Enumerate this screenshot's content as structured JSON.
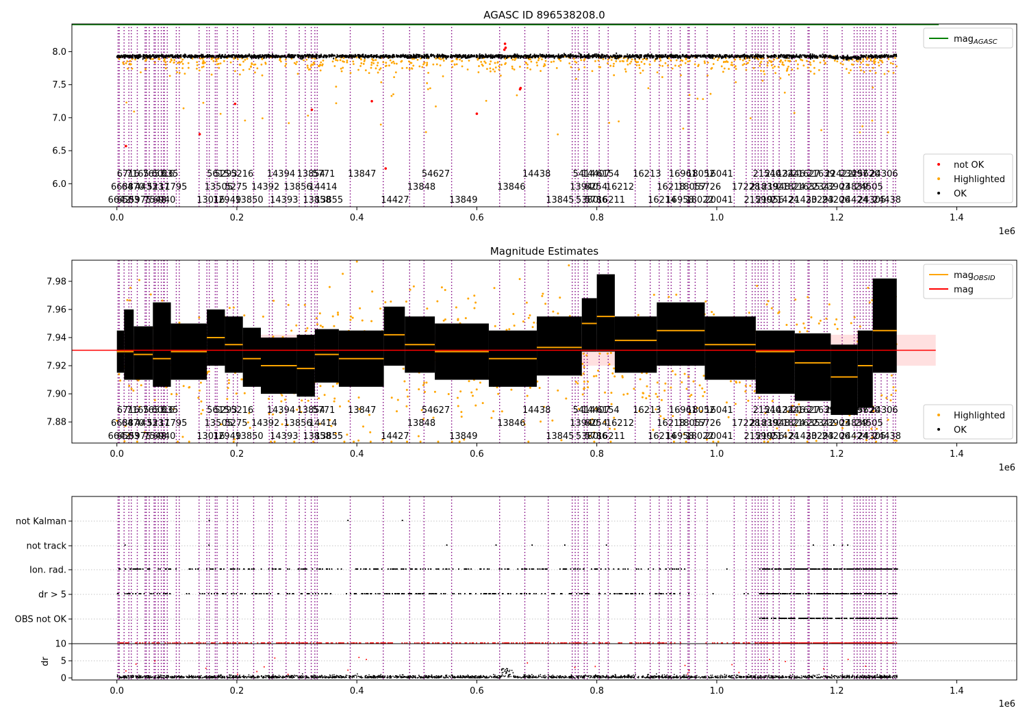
{
  "chart_data": [
    {
      "type": "scatter",
      "title": "AGASC ID 896538208.0",
      "xlim": [
        -75000,
        1500000
      ],
      "ylim": [
        5.65,
        8.42
      ],
      "xticks": [
        0.0,
        0.2,
        0.4,
        0.6,
        0.8,
        1.0,
        1.2,
        1.4
      ],
      "xtick_labels": [
        "0.0",
        "0.2",
        "0.4",
        "0.6",
        "0.8",
        "1.0",
        "1.2",
        "1.4"
      ],
      "x_offset_label": "1e6",
      "yticks": [
        6.0,
        6.5,
        7.0,
        7.5,
        8.0
      ],
      "ytick_labels": [
        "6.0",
        "6.5",
        "7.0",
        "7.5",
        "8.0"
      ],
      "mag_agasc": 8.42,
      "ok_level": 7.93,
      "legend_placement": [
        "top-right",
        "bottom-right"
      ],
      "legend_top": [
        {
          "label": "mag",
          "sub": "AGASC",
          "color": "#008000",
          "kind": "line"
        }
      ],
      "legend_bottom": [
        {
          "label": "not OK",
          "color": "#ff0000",
          "kind": "dot"
        },
        {
          "label": "Highlighted",
          "color": "#ffa500",
          "kind": "dot"
        },
        {
          "label": "OK",
          "color": "#000000",
          "kind": "dot"
        }
      ],
      "not_ok_points": [
        {
          "x": 0.015,
          "y": 6.57
        },
        {
          "x": 0.138,
          "y": 6.75
        },
        {
          "x": 0.197,
          "y": 7.21
        },
        {
          "x": 0.325,
          "y": 7.12
        },
        {
          "x": 0.425,
          "y": 7.25
        },
        {
          "x": 0.448,
          "y": 6.23
        },
        {
          "x": 0.6,
          "y": 7.06
        },
        {
          "x": 0.646,
          "y": 8.03
        },
        {
          "x": 0.647,
          "y": 8.12
        },
        {
          "x": 0.648,
          "y": 8.06
        },
        {
          "x": 0.672,
          "y": 7.43
        },
        {
          "x": 0.673,
          "y": 7.45
        }
      ]
    },
    {
      "type": "scatter",
      "title": "Magnitude Estimates",
      "xlim": [
        -75000,
        1500000
      ],
      "ylim": [
        7.865,
        7.995
      ],
      "xticks": [
        0.0,
        0.2,
        0.4,
        0.6,
        0.8,
        1.0,
        1.2,
        1.4
      ],
      "xtick_labels": [
        "0.0",
        "0.2",
        "0.4",
        "0.6",
        "0.8",
        "1.0",
        "1.2",
        "1.4"
      ],
      "x_offset_label": "1e6",
      "yticks": [
        7.88,
        7.9,
        7.92,
        7.94,
        7.96,
        7.98
      ],
      "ytick_labels": [
        "7.88",
        "7.90",
        "7.92",
        "7.94",
        "7.96",
        "7.98"
      ],
      "mag_mean": 7.931,
      "mag_band": [
        7.92,
        7.942
      ],
      "legend_placement": [
        "top-right",
        "bottom-right"
      ],
      "legend_top": [
        {
          "label": "mag",
          "sub": "OBSID",
          "color": "#ffa500",
          "kind": "line"
        },
        {
          "label": "mag",
          "sub": "",
          "color": "#ff0000",
          "kind": "line"
        }
      ],
      "legend_bottom": [
        {
          "label": "Highlighted",
          "color": "#ffa500",
          "kind": "dot"
        },
        {
          "label": "OK",
          "color": "#000000",
          "kind": "dot"
        }
      ],
      "segments": [
        {
          "x0": 0.0,
          "x1": 0.012,
          "mean": 7.93,
          "lo": 7.915,
          "hi": 7.945
        },
        {
          "x0": 0.012,
          "x1": 0.028,
          "mean": 7.93,
          "lo": 7.91,
          "hi": 7.96
        },
        {
          "x0": 0.028,
          "x1": 0.06,
          "mean": 7.928,
          "lo": 7.91,
          "hi": 7.948
        },
        {
          "x0": 0.06,
          "x1": 0.09,
          "mean": 7.925,
          "lo": 7.905,
          "hi": 7.965
        },
        {
          "x0": 0.09,
          "x1": 0.15,
          "mean": 7.93,
          "lo": 7.91,
          "hi": 7.95
        },
        {
          "x0": 0.15,
          "x1": 0.18,
          "mean": 7.94,
          "lo": 7.92,
          "hi": 7.96
        },
        {
          "x0": 0.18,
          "x1": 0.21,
          "mean": 7.935,
          "lo": 7.915,
          "hi": 7.955
        },
        {
          "x0": 0.21,
          "x1": 0.24,
          "mean": 7.925,
          "lo": 7.905,
          "hi": 7.947
        },
        {
          "x0": 0.24,
          "x1": 0.3,
          "mean": 7.92,
          "lo": 7.9,
          "hi": 7.94
        },
        {
          "x0": 0.3,
          "x1": 0.33,
          "mean": 7.918,
          "lo": 7.898,
          "hi": 7.942
        },
        {
          "x0": 0.33,
          "x1": 0.37,
          "mean": 7.928,
          "lo": 7.908,
          "hi": 7.946
        },
        {
          "x0": 0.37,
          "x1": 0.445,
          "mean": 7.925,
          "lo": 7.905,
          "hi": 7.945
        },
        {
          "x0": 0.445,
          "x1": 0.48,
          "mean": 7.942,
          "lo": 7.92,
          "hi": 7.962
        },
        {
          "x0": 0.48,
          "x1": 0.53,
          "mean": 7.935,
          "lo": 7.915,
          "hi": 7.955
        },
        {
          "x0": 0.53,
          "x1": 0.62,
          "mean": 7.93,
          "lo": 7.91,
          "hi": 7.95
        },
        {
          "x0": 0.62,
          "x1": 0.7,
          "mean": 7.925,
          "lo": 7.905,
          "hi": 7.945
        },
        {
          "x0": 0.7,
          "x1": 0.775,
          "mean": 7.933,
          "lo": 7.913,
          "hi": 7.955
        },
        {
          "x0": 0.775,
          "x1": 0.8,
          "mean": 7.95,
          "lo": 7.93,
          "hi": 7.968
        },
        {
          "x0": 0.8,
          "x1": 0.83,
          "mean": 7.955,
          "lo": 7.93,
          "hi": 7.985
        },
        {
          "x0": 0.83,
          "x1": 0.9,
          "mean": 7.938,
          "lo": 7.915,
          "hi": 7.955
        },
        {
          "x0": 0.9,
          "x1": 0.98,
          "mean": 7.945,
          "lo": 7.92,
          "hi": 7.965
        },
        {
          "x0": 0.98,
          "x1": 1.065,
          "mean": 7.935,
          "lo": 7.91,
          "hi": 7.955
        },
        {
          "x0": 1.065,
          "x1": 1.13,
          "mean": 7.93,
          "lo": 7.9,
          "hi": 7.945
        },
        {
          "x0": 1.13,
          "x1": 1.19,
          "mean": 7.922,
          "lo": 7.895,
          "hi": 7.943
        },
        {
          "x0": 1.19,
          "x1": 1.235,
          "mean": 7.912,
          "lo": 7.885,
          "hi": 7.935
        },
        {
          "x0": 1.235,
          "x1": 1.26,
          "mean": 7.92,
          "lo": 7.89,
          "hi": 7.945
        },
        {
          "x0": 1.26,
          "x1": 1.3,
          "mean": 7.945,
          "lo": 7.915,
          "hi": 7.982
        }
      ]
    },
    {
      "type": "scatter",
      "title": "",
      "xlim": [
        -75000,
        1500000
      ],
      "xticks": [
        0.0,
        0.2,
        0.4,
        0.6,
        0.8,
        1.0,
        1.2,
        1.4
      ],
      "xtick_labels": [
        "0.0",
        "0.2",
        "0.4",
        "0.6",
        "0.8",
        "1.0",
        "1.2",
        "1.4"
      ],
      "x_offset_label": "1e6",
      "ylabel": "dr",
      "dr_ylim": [
        -0.3,
        10.5
      ],
      "dr_yticks": [
        0,
        5,
        10
      ],
      "dr_ytick_labels": [
        "0",
        "5",
        "10"
      ],
      "flag_labels": [
        "not Kalman",
        "not track",
        "Ion. rad.",
        "dr > 5",
        "OBS not OK"
      ],
      "dr_threshold_values": [
        10,
        5
      ]
    }
  ],
  "obsids": {
    "rows": [
      [
        {
          "x": 0.0,
          "label": "6716"
        },
        {
          "x": 0.016,
          "label": "7165"
        },
        {
          "x": 0.043,
          "label": "7653"
        },
        {
          "x": 0.058,
          "label": "6016"
        },
        {
          "x": 0.074,
          "label": "635"
        },
        {
          "x": 0.15,
          "label": "5615"
        },
        {
          "x": 0.163,
          "label": "5293"
        },
        {
          "x": 0.19,
          "label": "5216"
        },
        {
          "x": 0.25,
          "label": "14394"
        },
        {
          "x": 0.3,
          "label": "13854"
        },
        {
          "x": 0.326,
          "label": "5771"
        },
        {
          "x": 0.385,
          "label": "13847"
        },
        {
          "x": 0.508,
          "label": "54627"
        },
        {
          "x": 0.676,
          "label": "14438"
        },
        {
          "x": 0.76,
          "label": "5414"
        },
        {
          "x": 0.775,
          "label": "14407"
        },
        {
          "x": 0.8,
          "label": "6154"
        },
        {
          "x": 0.86,
          "label": "16213"
        },
        {
          "x": 0.92,
          "label": "16961"
        },
        {
          "x": 0.95,
          "label": "18052"
        },
        {
          "x": 0.98,
          "label": "16041"
        },
        {
          "x": 1.06,
          "label": "21540"
        },
        {
          "x": 1.08,
          "label": "21422"
        },
        {
          "x": 1.1,
          "label": "13446"
        },
        {
          "x": 1.125,
          "label": "21627"
        },
        {
          "x": 1.15,
          "label": "21639"
        },
        {
          "x": 1.18,
          "label": "22422"
        },
        {
          "x": 1.205,
          "label": "23497"
        },
        {
          "x": 1.225,
          "label": "25620"
        },
        {
          "x": 1.255,
          "label": "24306"
        }
      ],
      [
        {
          "x": -0.01,
          "label": "6638"
        },
        {
          "x": 0.008,
          "label": "6470"
        },
        {
          "x": 0.03,
          "label": "4433"
        },
        {
          "x": 0.05,
          "label": "5237"
        },
        {
          "x": 0.07,
          "label": "11795"
        },
        {
          "x": 0.146,
          "label": "13505"
        },
        {
          "x": 0.18,
          "label": "5275"
        },
        {
          "x": 0.224,
          "label": "14392"
        },
        {
          "x": 0.278,
          "label": "13856"
        },
        {
          "x": 0.32,
          "label": "14414"
        },
        {
          "x": 0.484,
          "label": "13848"
        },
        {
          "x": 0.634,
          "label": "13846"
        },
        {
          "x": 0.755,
          "label": "13940"
        },
        {
          "x": 0.78,
          "label": "8254"
        },
        {
          "x": 0.815,
          "label": "16212"
        },
        {
          "x": 0.9,
          "label": "16218"
        },
        {
          "x": 0.935,
          "label": "18057"
        },
        {
          "x": 0.96,
          "label": "15726"
        },
        {
          "x": 1.025,
          "label": "17228"
        },
        {
          "x": 1.055,
          "label": "21839"
        },
        {
          "x": 1.075,
          "label": "21948"
        },
        {
          "x": 1.1,
          "label": "21824"
        },
        {
          "x": 1.125,
          "label": "21635"
        },
        {
          "x": 1.15,
          "label": "22342"
        },
        {
          "x": 1.175,
          "label": "23903"
        },
        {
          "x": 1.205,
          "label": "24839"
        },
        {
          "x": 1.23,
          "label": "24505"
        }
      ],
      [
        {
          "x": -0.015,
          "label": "6642"
        },
        {
          "x": 0.0,
          "label": "6583"
        },
        {
          "x": 0.02,
          "label": "5975"
        },
        {
          "x": 0.045,
          "label": "7548"
        },
        {
          "x": 0.06,
          "label": "6940"
        },
        {
          "x": 0.133,
          "label": "13016"
        },
        {
          "x": 0.16,
          "label": "12949"
        },
        {
          "x": 0.197,
          "label": "13850"
        },
        {
          "x": 0.255,
          "label": "14393"
        },
        {
          "x": 0.31,
          "label": "13858"
        },
        {
          "x": 0.33,
          "label": "13855"
        },
        {
          "x": 0.44,
          "label": "14427"
        },
        {
          "x": 0.554,
          "label": "13849"
        },
        {
          "x": 0.715,
          "label": "13845"
        },
        {
          "x": 0.765,
          "label": "5380"
        },
        {
          "x": 0.78,
          "label": "5786"
        },
        {
          "x": 0.8,
          "label": "16211"
        },
        {
          "x": 0.885,
          "label": "16214"
        },
        {
          "x": 0.915,
          "label": "16958"
        },
        {
          "x": 0.948,
          "label": "18022"
        },
        {
          "x": 0.98,
          "label": "20041"
        },
        {
          "x": 1.045,
          "label": "21590"
        },
        {
          "x": 1.065,
          "label": "21956"
        },
        {
          "x": 1.09,
          "label": "21424"
        },
        {
          "x": 1.12,
          "label": "21430"
        },
        {
          "x": 1.148,
          "label": "23293"
        },
        {
          "x": 1.175,
          "label": "24206"
        },
        {
          "x": 1.205,
          "label": "24424"
        },
        {
          "x": 1.235,
          "label": "24305"
        },
        {
          "x": 1.26,
          "label": "24438"
        }
      ]
    ]
  }
}
